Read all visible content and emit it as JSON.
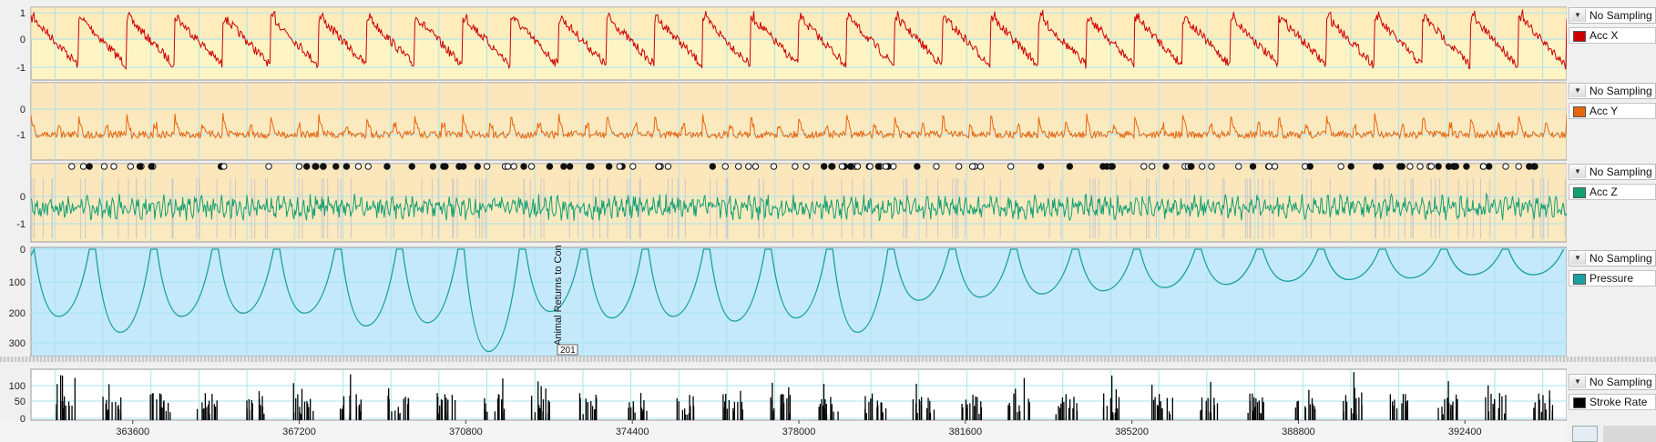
{
  "panels": [
    {
      "id": "accx",
      "label": "Acc X",
      "sampling": "No Sampling",
      "color": "#cc0000",
      "ticks": [
        "1",
        "0",
        "-1"
      ]
    },
    {
      "id": "accy",
      "label": "Acc Y",
      "sampling": "No Sampling",
      "color": "#e8660c",
      "ticks": [
        "0",
        "-1"
      ]
    },
    {
      "id": "accz",
      "label": "Acc Z",
      "sampling": "No Sampling",
      "color": "#12a072",
      "ticks": [
        "0",
        "-1"
      ]
    },
    {
      "id": "pressure",
      "label": "Pressure",
      "sampling": "No Sampling",
      "color": "#1aa0a0",
      "ticks": [
        "0",
        "100",
        "200",
        "300"
      ]
    },
    {
      "id": "stroke",
      "label": "Stroke Rate",
      "sampling": "No Sampling",
      "color": "#000000",
      "ticks": [
        "100",
        "50",
        "0"
      ]
    }
  ],
  "annotation": {
    "text": "Animal Returns to Con",
    "value": "201"
  },
  "chart_data": {
    "type": "line",
    "x_ticks": [
      "363600",
      "367200",
      "370800",
      "374400",
      "378000",
      "381600",
      "385200",
      "388800",
      "392400"
    ],
    "xlim": [
      361400,
      394600
    ],
    "series": [
      {
        "name": "Acc X",
        "ylim": [
          -1.1,
          1.1
        ]
      },
      {
        "name": "Acc Y",
        "ylim": [
          -1.6,
          0.6
        ]
      },
      {
        "name": "Acc Z",
        "ylim": [
          -1.6,
          0.6
        ]
      },
      {
        "name": "Pressure",
        "ylim": [
          0,
          330
        ],
        "dive_max_depths": [
          210,
          260,
          210,
          200,
          200,
          240,
          230,
          320,
          195,
          215,
          210,
          225,
          215,
          260,
          160,
          150,
          140,
          130,
          120,
          110,
          100,
          95,
          90,
          80,
          80
        ]
      },
      {
        "name": "Stroke Rate",
        "ylim": [
          0,
          140
        ]
      }
    ]
  }
}
